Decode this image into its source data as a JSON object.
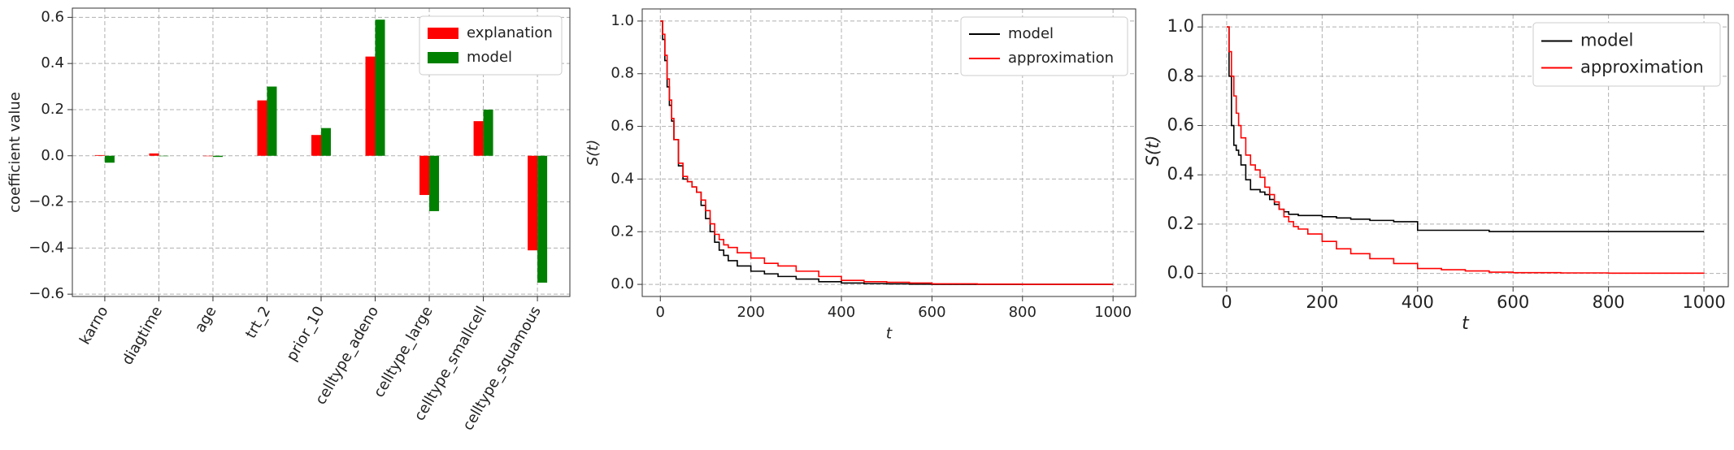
{
  "chart_data": [
    {
      "type": "bar",
      "ylabel": "coefficient value",
      "categories": [
        "karno",
        "diagtime",
        "age",
        "trt_2",
        "prior_10",
        "celltype_adeno",
        "celltype_large",
        "celltype_smallcell",
        "celltype_squamous"
      ],
      "series": [
        {
          "name": "explanation",
          "color": "#ff0000",
          "values": [
            0.003,
            0.01,
            0.0,
            0.24,
            0.09,
            0.43,
            -0.17,
            0.15,
            -0.41
          ]
        },
        {
          "name": "model",
          "color": "#008000",
          "values": [
            -0.03,
            0.0,
            -0.005,
            0.3,
            0.12,
            0.59,
            -0.24,
            0.2,
            -0.55
          ]
        }
      ],
      "ylim": [
        -0.61,
        0.64
      ],
      "yticks": [
        {
          "value": -0.6,
          "label": "−0.6"
        },
        {
          "value": -0.4,
          "label": "−0.4"
        },
        {
          "value": -0.2,
          "label": "−0.2"
        },
        {
          "value": 0,
          "label": "0.0"
        },
        0.2,
        0.4,
        0.6
      ],
      "grid": true,
      "legend": "upper right"
    },
    {
      "type": "step",
      "xlabel": "t",
      "ylabel": "S(t)",
      "x": [
        0,
        5,
        10,
        15,
        20,
        25,
        30,
        40,
        50,
        60,
        70,
        80,
        90,
        100,
        110,
        120,
        130,
        140,
        150,
        170,
        200,
        230,
        260,
        300,
        350,
        400,
        450,
        500,
        550,
        600,
        700,
        800,
        1000
      ],
      "series": [
        {
          "name": "model",
          "color": "#000000",
          "values": [
            1.0,
            0.93,
            0.85,
            0.75,
            0.68,
            0.62,
            0.55,
            0.45,
            0.4,
            0.39,
            0.37,
            0.35,
            0.3,
            0.25,
            0.2,
            0.16,
            0.13,
            0.11,
            0.09,
            0.07,
            0.05,
            0.04,
            0.03,
            0.02,
            0.01,
            0.005,
            0.003,
            0.002,
            0.001,
            0,
            0,
            0,
            0
          ]
        },
        {
          "name": "approximation",
          "color": "#ff0000",
          "values": [
            1.0,
            0.95,
            0.87,
            0.78,
            0.7,
            0.63,
            0.55,
            0.46,
            0.41,
            0.39,
            0.37,
            0.35,
            0.32,
            0.28,
            0.23,
            0.19,
            0.17,
            0.15,
            0.14,
            0.12,
            0.1,
            0.08,
            0.07,
            0.05,
            0.03,
            0.015,
            0.01,
            0.008,
            0.005,
            0.002,
            0.001,
            0,
            0
          ]
        }
      ],
      "xlim": [
        -40,
        1050
      ],
      "ylim": [
        -0.046,
        1.046
      ],
      "xticks": [
        0,
        200,
        400,
        600,
        800,
        1000
      ],
      "yticks": [
        {
          "value": 0,
          "label": "0.0"
        },
        0.2,
        0.4,
        0.6,
        0.8,
        {
          "value": 1,
          "label": "1.0"
        }
      ],
      "grid": true,
      "legend": "upper right"
    },
    {
      "type": "step",
      "xlabel": "t",
      "ylabel": "S(t)",
      "x": [
        0,
        5,
        10,
        15,
        20,
        25,
        30,
        40,
        50,
        60,
        70,
        80,
        90,
        100,
        110,
        120,
        130,
        140,
        150,
        170,
        200,
        230,
        260,
        300,
        350,
        400,
        450,
        500,
        550,
        600,
        700,
        800,
        1000
      ],
      "series": [
        {
          "name": "model",
          "color": "#000000",
          "values": [
            1.0,
            0.8,
            0.6,
            0.52,
            0.5,
            0.48,
            0.44,
            0.38,
            0.34,
            0.34,
            0.33,
            0.32,
            0.3,
            0.28,
            0.26,
            0.25,
            0.24,
            0.24,
            0.235,
            0.235,
            0.23,
            0.225,
            0.22,
            0.215,
            0.21,
            0.175,
            0.175,
            0.175,
            0.17,
            0.17,
            0.17,
            0.17,
            0.17
          ]
        },
        {
          "name": "approximation",
          "color": "#ff0000",
          "values": [
            1.0,
            0.9,
            0.8,
            0.72,
            0.65,
            0.6,
            0.55,
            0.48,
            0.44,
            0.42,
            0.39,
            0.35,
            0.32,
            0.29,
            0.26,
            0.23,
            0.21,
            0.19,
            0.18,
            0.16,
            0.13,
            0.1,
            0.08,
            0.06,
            0.04,
            0.02,
            0.015,
            0.01,
            0.005,
            0.003,
            0.002,
            0.001,
            0
          ]
        }
      ],
      "xlim": [
        -51,
        1051
      ],
      "ylim": [
        -0.054,
        1.05
      ],
      "xticks": [
        0,
        200,
        400,
        600,
        800,
        1000
      ],
      "yticks": [
        {
          "value": 0,
          "label": "0.0"
        },
        0.2,
        0.4,
        0.6,
        0.8,
        {
          "value": 1,
          "label": "1.0"
        }
      ],
      "grid": true,
      "legend": "upper right"
    }
  ]
}
